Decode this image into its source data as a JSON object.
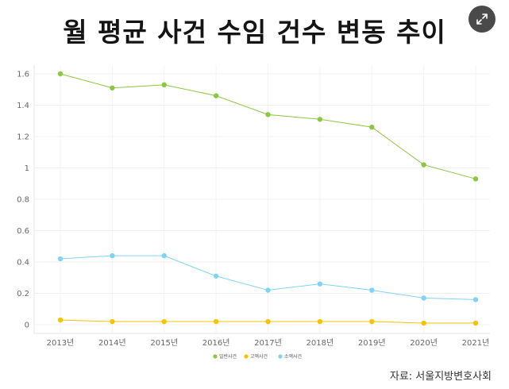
{
  "title": "월 평균 사건 수임 건수 변동 추이",
  "source": "자료: 서울지방변호사회",
  "expand_icon": "expand-arrows-icon",
  "chart_data": {
    "type": "line",
    "title": "월 평균 사건 수임 건수 변동 추이",
    "categories": [
      "2013년",
      "2014년",
      "2015년",
      "2016년",
      "2017년",
      "2018년",
      "2019년",
      "2020년",
      "2021년"
    ],
    "ylim": [
      0,
      1.6
    ],
    "yticks": [
      "0",
      "0.2",
      "0.4",
      "0.6",
      "0.8",
      "1",
      "1.2",
      "1.4",
      "1.6"
    ],
    "grid": true,
    "legend_position": "bottom",
    "series": [
      {
        "name": "일반사건",
        "color": "#8dc63f",
        "values": [
          1.6,
          1.51,
          1.53,
          1.46,
          1.34,
          1.31,
          1.26,
          1.02,
          0.93
        ]
      },
      {
        "name": "고액사건",
        "color": "#f5c400",
        "values": [
          0.03,
          0.02,
          0.02,
          0.02,
          0.02,
          0.02,
          0.02,
          0.01,
          0.01
        ]
      },
      {
        "name": "소액사건",
        "color": "#7fd3f5",
        "values": [
          0.42,
          0.44,
          0.44,
          0.31,
          0.22,
          0.26,
          0.22,
          0.17,
          0.16
        ]
      }
    ]
  }
}
